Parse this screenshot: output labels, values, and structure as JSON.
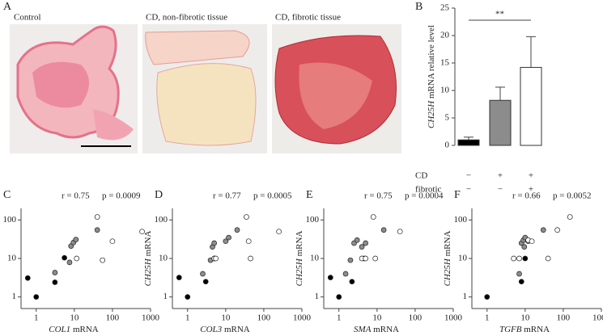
{
  "panel_a": {
    "label": "A",
    "captions": [
      "Control",
      "CD, non-fibrotic tissue",
      "CD, fibrotic tissue"
    ]
  },
  "chart_data": [
    {
      "type": "bar",
      "label": "B",
      "y_gene": "CH25H",
      "y_unit": "mRNA relative level",
      "categories": [
        null,
        null,
        null
      ],
      "values": [
        1.0,
        8.2,
        14.2
      ],
      "errors": [
        0.5,
        2.4,
        5.6
      ],
      "colors": [
        "#000000",
        "#8c8c8c",
        "#ffffff"
      ],
      "ylim": [
        0,
        25
      ],
      "yticks": [
        0,
        5,
        10,
        15,
        20,
        25
      ],
      "significance": "**",
      "conditions": [
        {
          "label": "CD",
          "marks": [
            "−",
            "+",
            "+"
          ]
        },
        {
          "label": "fibrotic",
          "marks": [
            "−",
            "−",
            "+"
          ]
        }
      ]
    },
    {
      "type": "scatter",
      "label": "C",
      "r": "r = 0.75",
      "p": "p = 0.0009",
      "x_gene": "COL1",
      "x_unit": "mRNA",
      "y_gene": "CH25H",
      "y_unit": "mRNA",
      "log_x": true,
      "log_y": true,
      "xlim": [
        0.4,
        1000
      ],
      "ylim": [
        0.5,
        200
      ],
      "xticks": [
        1,
        10,
        100,
        1000
      ],
      "yticks": [
        1,
        10,
        100
      ],
      "series": [
        {
          "color": "#000000",
          "x": [
            0.6,
            1,
            3.1,
            5.5
          ],
          "values": [
            3.1,
            1,
            2.4,
            10.4
          ]
        },
        {
          "color": "#8c8c8c",
          "x": [
            3.1,
            7.5,
            8.2,
            9.5,
            11,
            40
          ],
          "values": [
            4.3,
            7.9,
            21,
            26,
            31,
            55
          ]
        },
        {
          "color": "#ffffff",
          "x": [
            11.5,
            55,
            40,
            100,
            600
          ],
          "values": [
            10,
            9,
            120,
            28,
            50
          ]
        }
      ]
    },
    {
      "type": "scatter",
      "label": "D",
      "r": "r = 0.77",
      "p": "p = 0.0005",
      "x_gene": "COL3",
      "x_unit": "mRNA",
      "y_gene": "CH25H",
      "y_unit": "mRNA",
      "log_x": true,
      "log_y": true,
      "xlim": [
        0.4,
        1000
      ],
      "ylim": [
        0.5,
        200
      ],
      "xticks": [
        1,
        10,
        100,
        1000
      ],
      "yticks": [
        1,
        10,
        100
      ],
      "series": [
        {
          "color": "#000000",
          "x": [
            0.6,
            1,
            3,
            5
          ],
          "values": [
            3.2,
            1,
            2.5,
            10
          ]
        },
        {
          "color": "#8c8c8c",
          "x": [
            2.5,
            4,
            4.5,
            5,
            10,
            12,
            20
          ],
          "values": [
            4,
            9,
            20,
            25,
            28,
            35,
            55
          ]
        },
        {
          "color": "#ffffff",
          "x": [
            5,
            5.5,
            35,
            40,
            45,
            250
          ],
          "values": [
            10,
            10,
            120,
            28,
            10,
            50
          ]
        }
      ]
    },
    {
      "type": "scatter",
      "label": "E",
      "r": "r = 0.75",
      "p": "p = 0.0004",
      "x_gene": "SMA",
      "x_unit": "mRNA",
      "y_gene": "CH25H",
      "y_unit": "mRNA",
      "log_x": true,
      "log_y": true,
      "xlim": [
        0.4,
        1000
      ],
      "ylim": [
        0.5,
        200
      ],
      "xticks": [
        1,
        10,
        100,
        1000
      ],
      "yticks": [
        1,
        10,
        100
      ],
      "series": [
        {
          "color": "#000000",
          "x": [
            0.6,
            1,
            2.2,
            4.5
          ],
          "values": [
            3.2,
            1,
            2.5,
            10
          ]
        },
        {
          "color": "#8c8c8c",
          "x": [
            1.5,
            2,
            2.5,
            3,
            4,
            5,
            15
          ],
          "values": [
            4,
            9,
            25,
            30,
            20,
            25,
            55
          ]
        },
        {
          "color": "#ffffff",
          "x": [
            4,
            5,
            8,
            9,
            40
          ],
          "values": [
            10,
            10,
            120,
            10,
            50
          ]
        }
      ]
    },
    {
      "type": "scatter",
      "label": "F",
      "r": "r = 0.66",
      "p": "p = 0.0052",
      "x_gene": "TGFB",
      "x_unit": "mRNA",
      "y_gene": "CH25H",
      "y_unit": "mRNA",
      "log_x": true,
      "log_y": true,
      "xlim": [
        0.4,
        1000
      ],
      "ylim": [
        0.5,
        200
      ],
      "xticks": [
        1,
        10,
        100,
        1000
      ],
      "yticks": [
        1,
        10,
        100
      ],
      "series": [
        {
          "color": "#000000",
          "x": [
            1,
            8,
            10
          ],
          "values": [
            1,
            2.5,
            10
          ]
        },
        {
          "color": "#8c8c8c",
          "x": [
            7,
            8,
            9,
            9.5,
            10,
            12,
            30
          ],
          "values": [
            4,
            25,
            30,
            20,
            35,
            28,
            55
          ]
        },
        {
          "color": "#ffffff",
          "x": [
            5,
            7,
            12,
            15,
            40,
            70,
            150
          ],
          "values": [
            10,
            10,
            30,
            28,
            10,
            55,
            120
          ]
        }
      ]
    }
  ]
}
